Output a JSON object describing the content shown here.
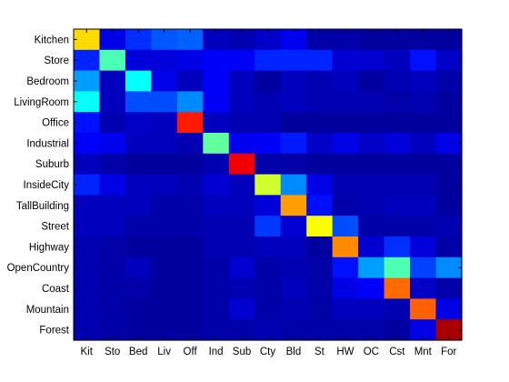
{
  "chart_data": {
    "type": "heatmap",
    "colormap": "jet",
    "value_range": [
      0,
      1
    ],
    "row_labels": [
      "Kitchen",
      "Store",
      "Bedroom",
      "LivingRoom",
      "Office",
      "Industrial",
      "Suburb",
      "InsideCity",
      "TallBuilding",
      "Street",
      "Highway",
      "OpenCountry",
      "Coast",
      "Mountain",
      "Forest"
    ],
    "col_labels": [
      "Kit",
      "Sto",
      "Bed",
      "Liv",
      "Off",
      "Ind",
      "Sub",
      "Cty",
      "Bld",
      "St",
      "HW",
      "OC",
      "Cst",
      "Mnt",
      "For"
    ],
    "values": [
      [
        0.66,
        0.1,
        0.17,
        0.21,
        0.22,
        0.06,
        0.05,
        0.07,
        0.11,
        0.04,
        0.04,
        0.03,
        0.03,
        0.03,
        0.03
      ],
      [
        0.16,
        0.45,
        0.09,
        0.09,
        0.1,
        0.12,
        0.12,
        0.16,
        0.16,
        0.16,
        0.08,
        0.08,
        0.06,
        0.14,
        0.07
      ],
      [
        0.28,
        0.06,
        0.38,
        0.1,
        0.06,
        0.12,
        0.06,
        0.03,
        0.06,
        0.05,
        0.06,
        0.03,
        0.05,
        0.06,
        0.04
      ],
      [
        0.38,
        0.06,
        0.2,
        0.2,
        0.26,
        0.12,
        0.06,
        0.05,
        0.06,
        0.05,
        0.05,
        0.05,
        0.04,
        0.05,
        0.03
      ],
      [
        0.14,
        0.05,
        0.07,
        0.06,
        0.85,
        0.06,
        0.05,
        0.05,
        0.03,
        0.03,
        0.03,
        0.03,
        0.03,
        0.03,
        0.03
      ],
      [
        0.12,
        0.11,
        0.06,
        0.06,
        0.05,
        0.47,
        0.11,
        0.12,
        0.15,
        0.07,
        0.1,
        0.07,
        0.09,
        0.06,
        0.1
      ],
      [
        0.06,
        0.04,
        0.03,
        0.03,
        0.03,
        0.05,
        0.89,
        0.04,
        0.04,
        0.03,
        0.03,
        0.03,
        0.03,
        0.03,
        0.03
      ],
      [
        0.16,
        0.1,
        0.06,
        0.06,
        0.05,
        0.08,
        0.06,
        0.58,
        0.26,
        0.1,
        0.05,
        0.05,
        0.05,
        0.05,
        0.03
      ],
      [
        0.06,
        0.06,
        0.06,
        0.04,
        0.04,
        0.06,
        0.06,
        0.09,
        0.72,
        0.14,
        0.04,
        0.05,
        0.06,
        0.06,
        0.03
      ],
      [
        0.06,
        0.06,
        0.04,
        0.04,
        0.04,
        0.05,
        0.05,
        0.18,
        0.08,
        0.62,
        0.2,
        0.04,
        0.04,
        0.04,
        0.05
      ],
      [
        0.05,
        0.04,
        0.03,
        0.03,
        0.03,
        0.05,
        0.05,
        0.06,
        0.06,
        0.03,
        0.74,
        0.08,
        0.17,
        0.09,
        0.04
      ],
      [
        0.05,
        0.04,
        0.06,
        0.03,
        0.03,
        0.04,
        0.08,
        0.04,
        0.05,
        0.04,
        0.14,
        0.28,
        0.45,
        0.19,
        0.26
      ],
      [
        0.05,
        0.04,
        0.04,
        0.03,
        0.03,
        0.04,
        0.05,
        0.04,
        0.06,
        0.04,
        0.1,
        0.12,
        0.77,
        0.07,
        0.04
      ],
      [
        0.05,
        0.04,
        0.03,
        0.03,
        0.03,
        0.04,
        0.08,
        0.04,
        0.05,
        0.04,
        0.06,
        0.06,
        0.05,
        0.78,
        0.1
      ],
      [
        0.05,
        0.04,
        0.03,
        0.03,
        0.03,
        0.04,
        0.04,
        0.05,
        0.04,
        0.04,
        0.04,
        0.04,
        0.03,
        0.1,
        0.96
      ]
    ],
    "title": "",
    "xlabel": "",
    "ylabel": "",
    "grid": false,
    "legend": "none"
  }
}
